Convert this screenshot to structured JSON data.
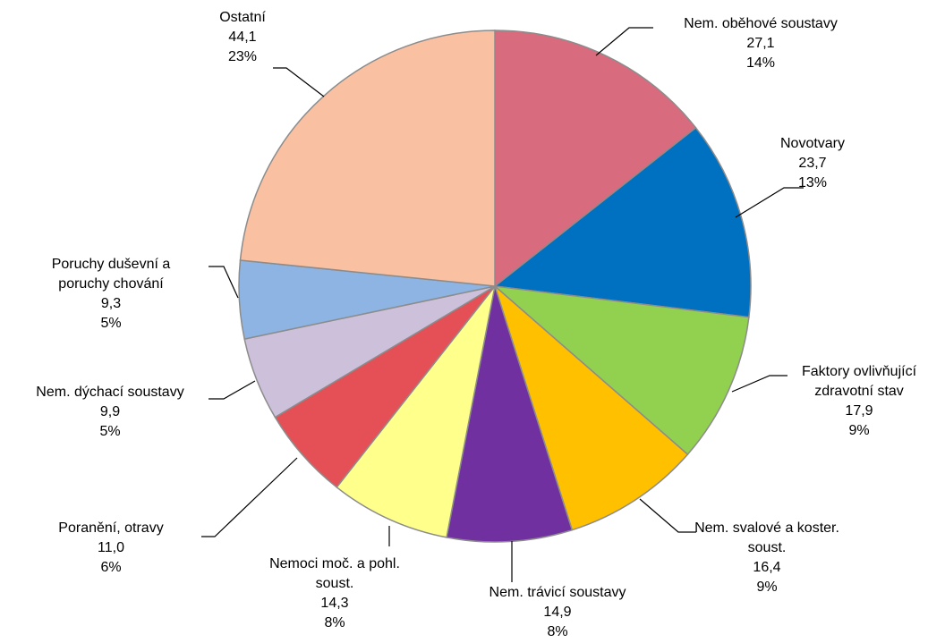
{
  "chart_data": {
    "type": "pie",
    "title": "",
    "slices": [
      {
        "name": "Nem. oběhové soustavy",
        "label_lines": [
          "Nem. oběhové soustavy"
        ],
        "value": 27.1,
        "value_label": "27,1",
        "percent_label": "14%",
        "color": "#d96b7e"
      },
      {
        "name": "Novotvary",
        "label_lines": [
          "Novotvary"
        ],
        "value": 23.7,
        "value_label": "23,7",
        "percent_label": "13%",
        "color": "#0070c0"
      },
      {
        "name": "Faktory ovlivňující zdravotní stav",
        "label_lines": [
          "Faktory ovlivňující",
          "zdravotní stav"
        ],
        "value": 17.9,
        "value_label": "17,9",
        "percent_label": "9%",
        "color": "#92d050"
      },
      {
        "name": "Nem. svalové a koster. soust.",
        "label_lines": [
          "Nem. svalové a koster.",
          "soust."
        ],
        "value": 16.4,
        "value_label": "16,4",
        "percent_label": "9%",
        "color": "#ffc000"
      },
      {
        "name": "Nem. trávicí soustavy",
        "label_lines": [
          "Nem. trávicí soustavy"
        ],
        "value": 14.9,
        "value_label": "14,9",
        "percent_label": "8%",
        "color": "#7030a0"
      },
      {
        "name": "Nemoci moč. a pohl. soust.",
        "label_lines": [
          "Nemoci moč. a pohl.",
          "soust."
        ],
        "value": 14.3,
        "value_label": "14,3",
        "percent_label": "8%",
        "color": "#ffff8c"
      },
      {
        "name": "Poranění, otravy",
        "label_lines": [
          "Poranění, otravy"
        ],
        "value": 11.0,
        "value_label": "11,0",
        "percent_label": "6%",
        "color": "#e55057"
      },
      {
        "name": "Nem. dýchací soustavy",
        "label_lines": [
          "Nem. dýchací soustavy"
        ],
        "value": 9.9,
        "value_label": "9,9",
        "percent_label": "5%",
        "color": "#ccc0da"
      },
      {
        "name": "Poruchy duševní a poruchy chování",
        "label_lines": [
          "Poruchy duševní a",
          "poruchy chování"
        ],
        "value": 9.3,
        "value_label": "9,3",
        "percent_label": "5%",
        "color": "#8db4e2"
      },
      {
        "name": "Ostatní",
        "label_lines": [
          "Ostatní"
        ],
        "value": 44.1,
        "value_label": "44,1",
        "percent_label": "23%",
        "color": "#fac0a2"
      }
    ]
  }
}
